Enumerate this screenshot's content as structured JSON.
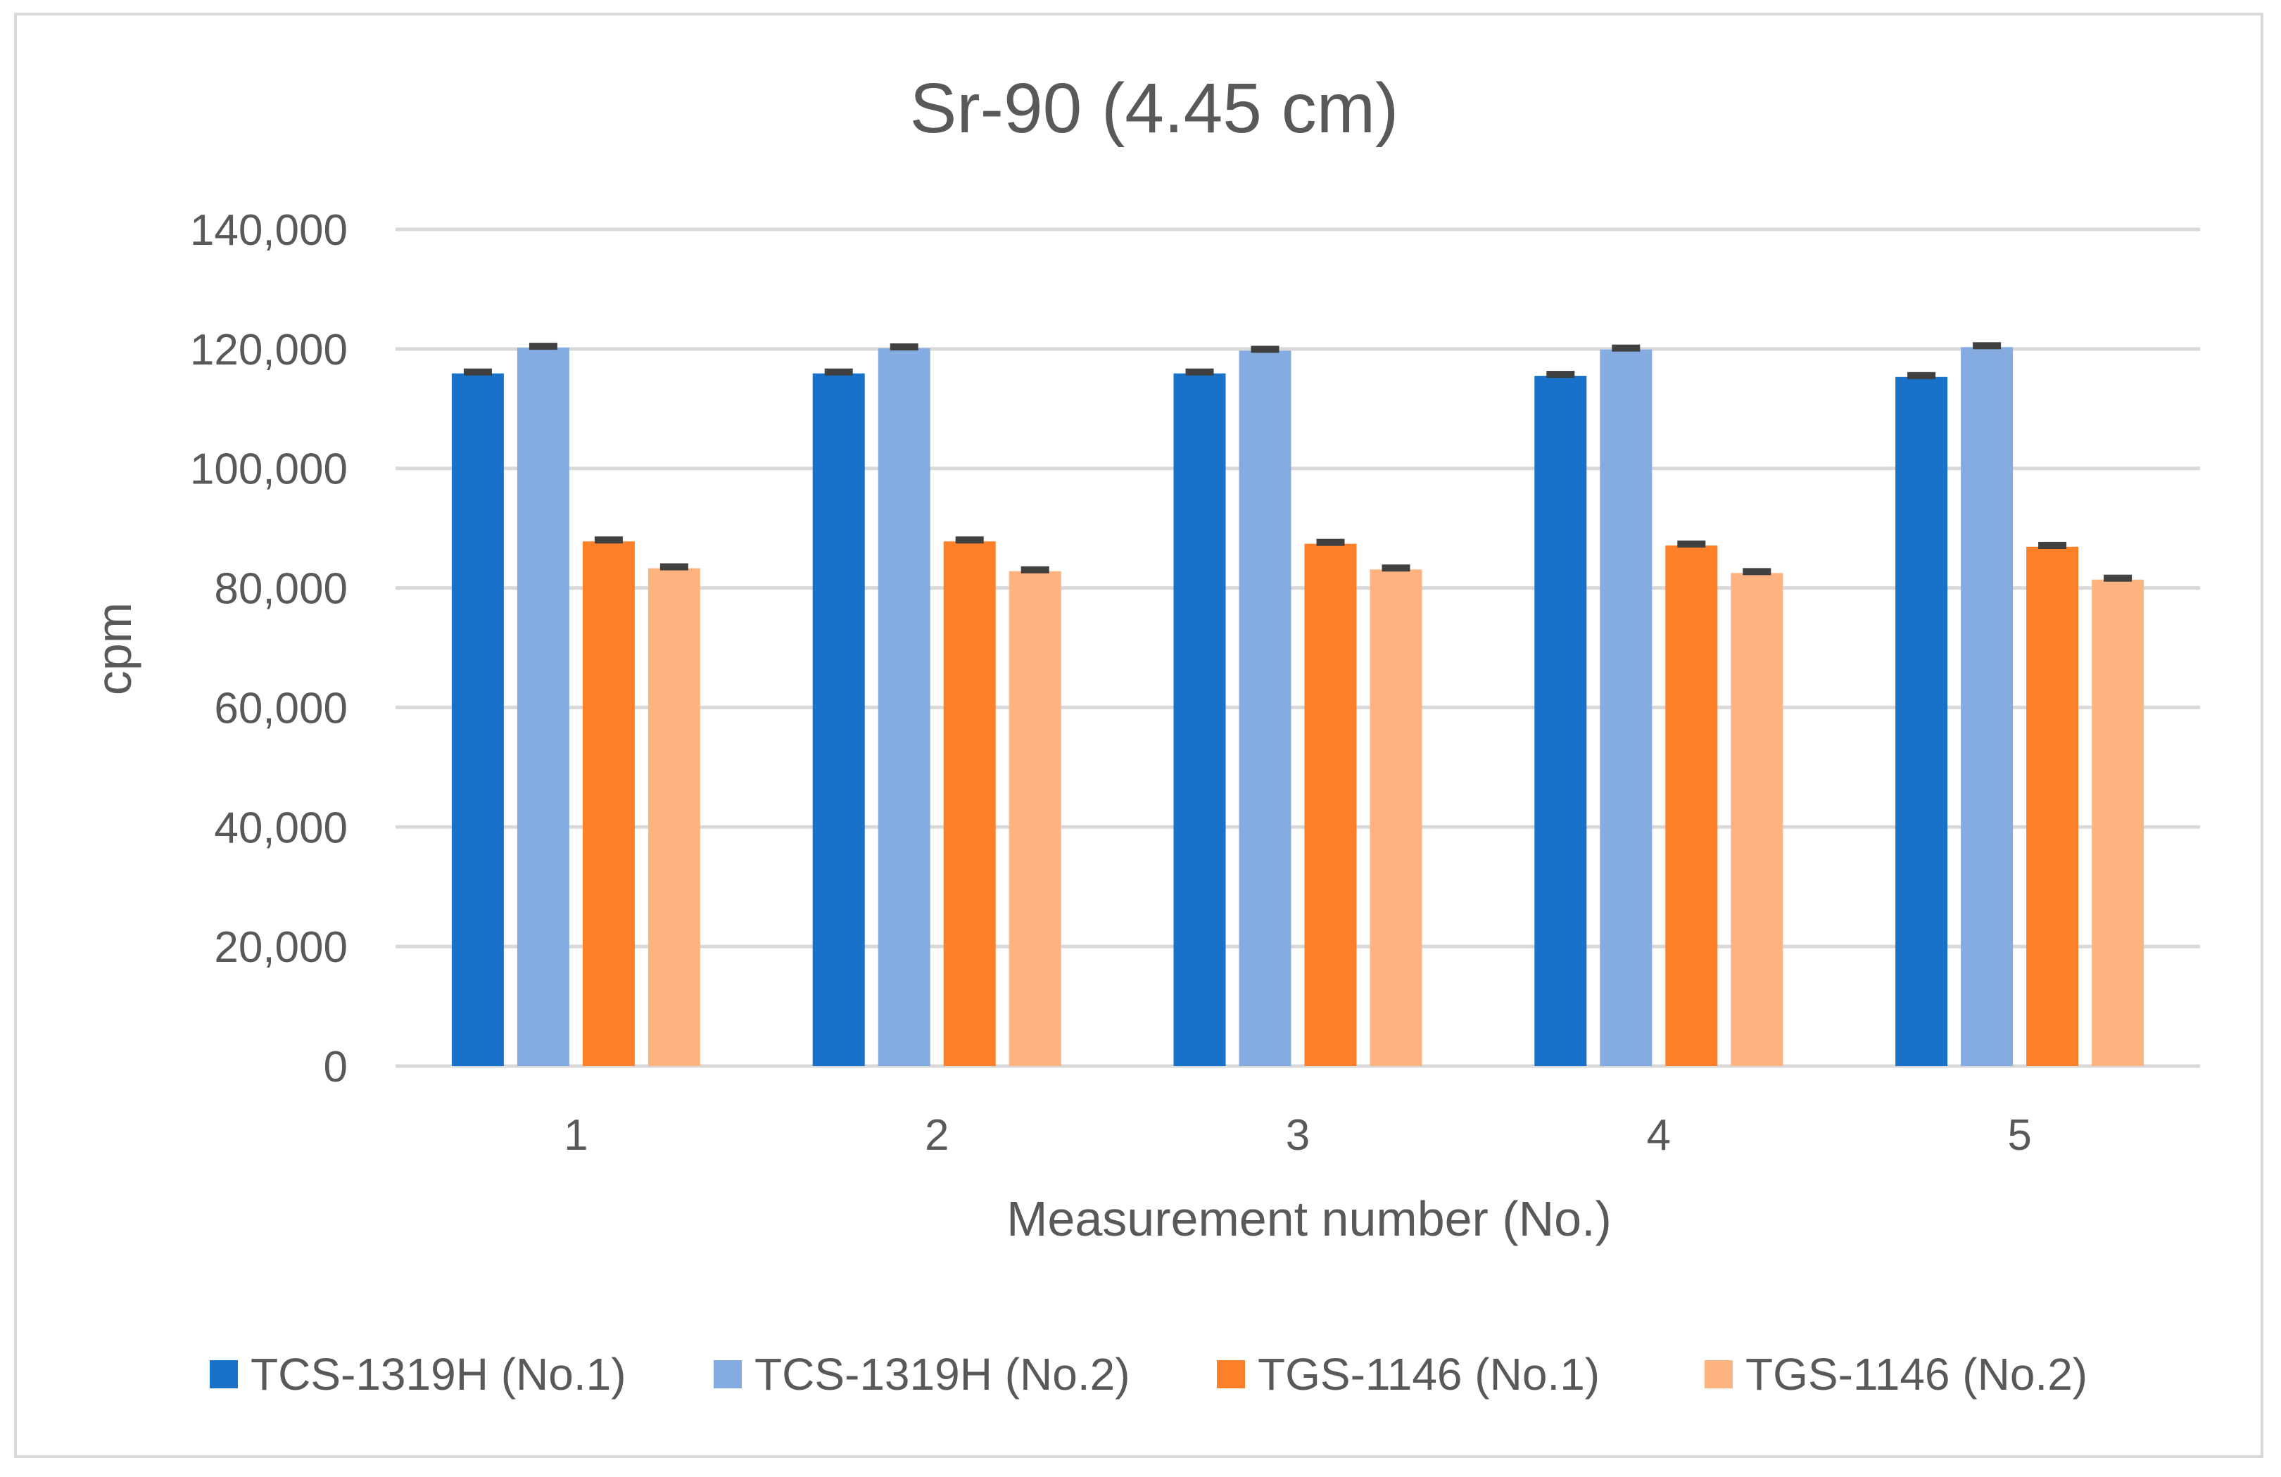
{
  "chart_data": {
    "type": "bar",
    "title": "Sr-90 (4.45 cm)",
    "xlabel": "Measurement number (No.)",
    "ylabel": "cpm",
    "ylim": [
      0,
      140000
    ],
    "yticks": [
      0,
      20000,
      40000,
      60000,
      80000,
      100000,
      120000,
      140000
    ],
    "ytick_labels": [
      "0",
      "20,000",
      "40,000",
      "60,000",
      "80,000",
      "100,000",
      "120,000",
      "140,000"
    ],
    "categories": [
      "1",
      "2",
      "3",
      "4",
      "5"
    ],
    "grid": true,
    "legend_position": "bottom",
    "error_bars": true,
    "series": [
      {
        "name": "TCS-1319H (No.1)",
        "color": "#1872c9",
        "values": [
          115900,
          115900,
          115900,
          115500,
          115300
        ]
      },
      {
        "name": "TCS-1319H (No.2)",
        "color": "#84ace0",
        "values": [
          120200,
          120100,
          119700,
          119900,
          120300
        ]
      },
      {
        "name": "TGS-1146 (No.1)",
        "color": "#fd7f27",
        "values": [
          87800,
          87800,
          87400,
          87100,
          86900
        ]
      },
      {
        "name": "TGS-1146 (No.2)",
        "color": "#ffb381",
        "values": [
          83300,
          82800,
          83100,
          82500,
          81400
        ]
      }
    ],
    "error_bar_color": "#404040"
  }
}
